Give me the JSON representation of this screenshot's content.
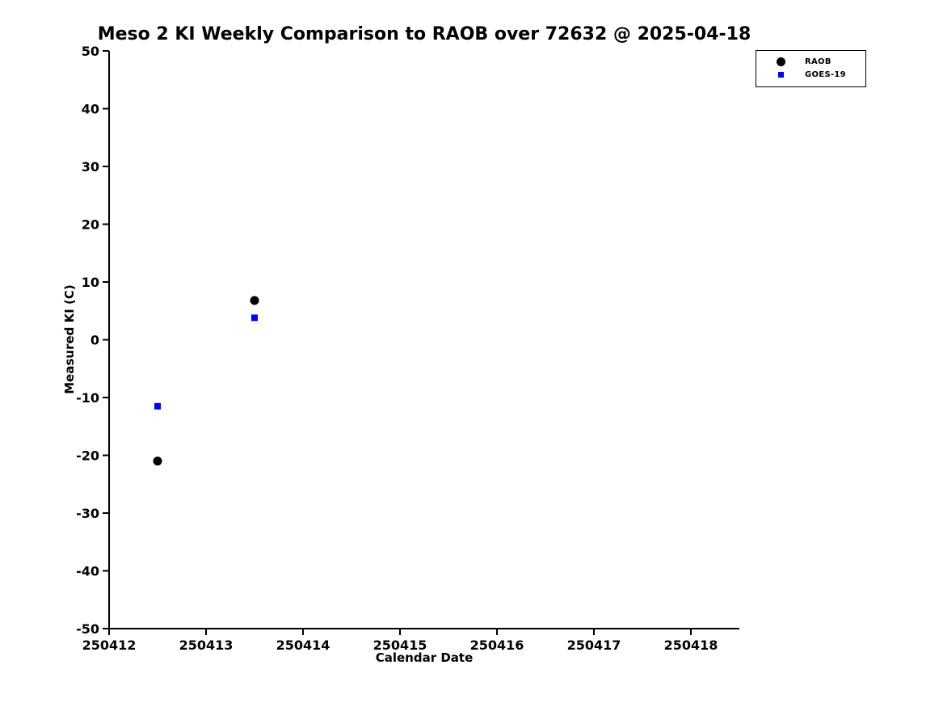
{
  "chart_data": {
    "type": "scatter",
    "title": "Meso 2 KI Weekly Comparison to RAOB over 72632 @ 2025-04-18",
    "xlabel": "Calendar Date",
    "ylabel": "Measured KI (C)",
    "xlim": [
      250412,
      250418.5
    ],
    "ylim": [
      -50,
      50
    ],
    "xticks": [
      250412,
      250413,
      250414,
      250415,
      250416,
      250417,
      250418
    ],
    "yticks": [
      -50,
      -40,
      -30,
      -20,
      -10,
      0,
      10,
      20,
      30,
      40,
      50
    ],
    "grid": false,
    "legend_position": "top-right",
    "axis_color": "#000000",
    "background_color": "#ffffff",
    "series": [
      {
        "name": "RAOB",
        "marker": "circle",
        "color": "#000000",
        "points": [
          {
            "x": 250412.5,
            "y": -21
          },
          {
            "x": 250413.5,
            "y": 6.8
          }
        ]
      },
      {
        "name": "GOES-19",
        "marker": "square",
        "color": "#0000ff",
        "points": [
          {
            "x": 250412.5,
            "y": -11.5
          },
          {
            "x": 250413.5,
            "y": 3.8
          }
        ]
      }
    ]
  }
}
